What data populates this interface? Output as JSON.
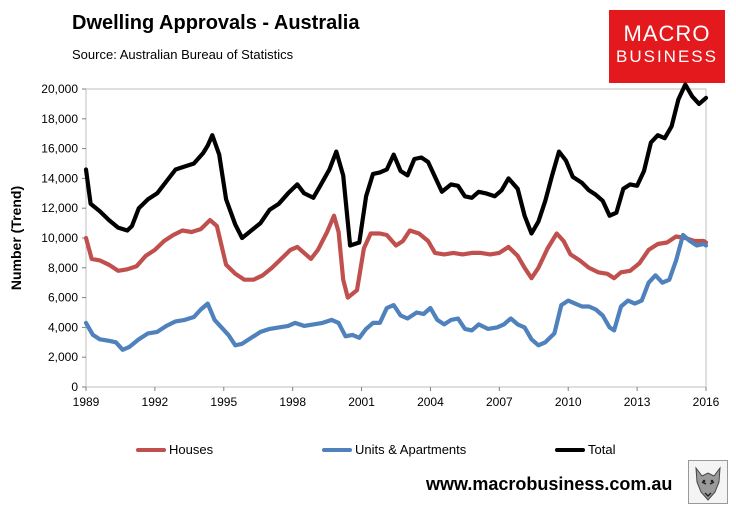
{
  "header": {
    "title": "Dwelling Approvals - Australia",
    "source": "Source:   Australian Bureau of Statistics"
  },
  "logo": {
    "line1": "MACRO",
    "line2": "BUSINESS"
  },
  "footer": {
    "url": "www.macrobusiness.com.au",
    "wolf_icon": "wolf-icon"
  },
  "chart_data": {
    "type": "line",
    "title": "Dwelling Approvals - Australia",
    "xlabel": "",
    "ylabel": "Number (Trend)",
    "xlim": [
      1989,
      2016
    ],
    "ylim": [
      0,
      20000
    ],
    "xticks": [
      "1989",
      "1992",
      "1995",
      "1998",
      "2001",
      "2004",
      "2007",
      "2010",
      "2013",
      "2016"
    ],
    "yticks": [
      "0",
      "2,000",
      "4,000",
      "6,000",
      "8,000",
      "10,000",
      "12,000",
      "14,000",
      "16,000",
      "18,000",
      "20,000"
    ],
    "legend_position": "bottom",
    "grid": false,
    "series": [
      {
        "name": "Houses",
        "color": "#c0504d",
        "points": [
          [
            1989.0,
            10000
          ],
          [
            1989.25,
            8600
          ],
          [
            1989.6,
            8500
          ],
          [
            1990.0,
            8200
          ],
          [
            1990.4,
            7800
          ],
          [
            1990.8,
            7900
          ],
          [
            1991.2,
            8100
          ],
          [
            1991.6,
            8800
          ],
          [
            1992.0,
            9200
          ],
          [
            1992.4,
            9800
          ],
          [
            1992.8,
            10200
          ],
          [
            1993.2,
            10500
          ],
          [
            1993.6,
            10400
          ],
          [
            1994.0,
            10600
          ],
          [
            1994.4,
            11200
          ],
          [
            1994.7,
            10800
          ],
          [
            1994.9,
            9500
          ],
          [
            1995.1,
            8200
          ],
          [
            1995.5,
            7600
          ],
          [
            1995.9,
            7200
          ],
          [
            1996.3,
            7200
          ],
          [
            1996.7,
            7500
          ],
          [
            1997.1,
            8000
          ],
          [
            1997.5,
            8600
          ],
          [
            1997.9,
            9200
          ],
          [
            1998.2,
            9400
          ],
          [
            1998.5,
            9000
          ],
          [
            1998.8,
            8600
          ],
          [
            1999.1,
            9200
          ],
          [
            1999.5,
            10400
          ],
          [
            1999.8,
            11500
          ],
          [
            2000.0,
            10400
          ],
          [
            2000.2,
            7200
          ],
          [
            2000.4,
            6000
          ],
          [
            2000.8,
            6500
          ],
          [
            2001.1,
            9300
          ],
          [
            2001.4,
            10300
          ],
          [
            2001.8,
            10300
          ],
          [
            2002.1,
            10200
          ],
          [
            2002.5,
            9500
          ],
          [
            2002.8,
            9800
          ],
          [
            2003.1,
            10500
          ],
          [
            2003.5,
            10300
          ],
          [
            2003.9,
            9800
          ],
          [
            2004.2,
            9000
          ],
          [
            2004.6,
            8900
          ],
          [
            2005.0,
            9000
          ],
          [
            2005.4,
            8900
          ],
          [
            2005.8,
            9000
          ],
          [
            2006.2,
            9000
          ],
          [
            2006.6,
            8900
          ],
          [
            2007.0,
            9000
          ],
          [
            2007.4,
            9400
          ],
          [
            2007.8,
            8800
          ],
          [
            2008.1,
            8000
          ],
          [
            2008.4,
            7300
          ],
          [
            2008.7,
            8000
          ],
          [
            2009.1,
            9300
          ],
          [
            2009.5,
            10300
          ],
          [
            2009.8,
            9800
          ],
          [
            2010.1,
            8900
          ],
          [
            2010.5,
            8500
          ],
          [
            2010.9,
            8000
          ],
          [
            2011.3,
            7700
          ],
          [
            2011.7,
            7600
          ],
          [
            2012.0,
            7300
          ],
          [
            2012.3,
            7700
          ],
          [
            2012.7,
            7800
          ],
          [
            2013.1,
            8300
          ],
          [
            2013.5,
            9200
          ],
          [
            2013.9,
            9600
          ],
          [
            2014.3,
            9700
          ],
          [
            2014.7,
            10100
          ],
          [
            2015.1,
            10000
          ],
          [
            2015.5,
            9800
          ],
          [
            2015.9,
            9800
          ],
          [
            2016.0,
            9700
          ]
        ]
      },
      {
        "name": "Units & Apartments",
        "color": "#4f81bd",
        "points": [
          [
            1989.0,
            4300
          ],
          [
            1989.3,
            3500
          ],
          [
            1989.6,
            3200
          ],
          [
            1990.0,
            3100
          ],
          [
            1990.3,
            3000
          ],
          [
            1990.6,
            2500
          ],
          [
            1990.9,
            2700
          ],
          [
            1991.3,
            3200
          ],
          [
            1991.7,
            3600
          ],
          [
            1992.1,
            3700
          ],
          [
            1992.5,
            4100
          ],
          [
            1992.9,
            4400
          ],
          [
            1993.3,
            4500
          ],
          [
            1993.7,
            4700
          ],
          [
            1994.0,
            5200
          ],
          [
            1994.3,
            5600
          ],
          [
            1994.6,
            4500
          ],
          [
            1994.9,
            4000
          ],
          [
            1995.2,
            3500
          ],
          [
            1995.5,
            2800
          ],
          [
            1995.8,
            2900
          ],
          [
            1996.2,
            3300
          ],
          [
            1996.6,
            3700
          ],
          [
            1997.0,
            3900
          ],
          [
            1997.4,
            4000
          ],
          [
            1997.8,
            4100
          ],
          [
            1998.1,
            4300
          ],
          [
            1998.5,
            4100
          ],
          [
            1998.9,
            4200
          ],
          [
            1999.3,
            4300
          ],
          [
            1999.7,
            4500
          ],
          [
            2000.0,
            4300
          ],
          [
            2000.3,
            3400
          ],
          [
            2000.6,
            3500
          ],
          [
            2000.9,
            3300
          ],
          [
            2001.2,
            3900
          ],
          [
            2001.5,
            4300
          ],
          [
            2001.8,
            4300
          ],
          [
            2002.1,
            5300
          ],
          [
            2002.4,
            5500
          ],
          [
            2002.7,
            4800
          ],
          [
            2003.0,
            4600
          ],
          [
            2003.4,
            5000
          ],
          [
            2003.7,
            4900
          ],
          [
            2004.0,
            5300
          ],
          [
            2004.3,
            4500
          ],
          [
            2004.6,
            4200
          ],
          [
            2004.9,
            4500
          ],
          [
            2005.2,
            4600
          ],
          [
            2005.5,
            3900
          ],
          [
            2005.8,
            3800
          ],
          [
            2006.1,
            4200
          ],
          [
            2006.5,
            3900
          ],
          [
            2006.9,
            4000
          ],
          [
            2007.2,
            4200
          ],
          [
            2007.5,
            4600
          ],
          [
            2007.8,
            4200
          ],
          [
            2008.1,
            4000
          ],
          [
            2008.4,
            3200
          ],
          [
            2008.7,
            2800
          ],
          [
            2009.0,
            3000
          ],
          [
            2009.4,
            3600
          ],
          [
            2009.7,
            5500
          ],
          [
            2010.0,
            5800
          ],
          [
            2010.3,
            5600
          ],
          [
            2010.6,
            5400
          ],
          [
            2010.9,
            5400
          ],
          [
            2011.2,
            5200
          ],
          [
            2011.5,
            4800
          ],
          [
            2011.8,
            4000
          ],
          [
            2012.0,
            3800
          ],
          [
            2012.3,
            5400
          ],
          [
            2012.6,
            5800
          ],
          [
            2012.9,
            5600
          ],
          [
            2013.2,
            5800
          ],
          [
            2013.5,
            7000
          ],
          [
            2013.8,
            7500
          ],
          [
            2014.1,
            7000
          ],
          [
            2014.4,
            7200
          ],
          [
            2014.7,
            8500
          ],
          [
            2015.0,
            10200
          ],
          [
            2015.3,
            9800
          ],
          [
            2015.6,
            9500
          ],
          [
            2015.9,
            9600
          ],
          [
            2016.0,
            9500
          ]
        ]
      },
      {
        "name": "Total",
        "color": "#000000",
        "points": [
          [
            1989.0,
            14600
          ],
          [
            1989.2,
            12300
          ],
          [
            1989.6,
            11800
          ],
          [
            1990.0,
            11200
          ],
          [
            1990.4,
            10700
          ],
          [
            1990.8,
            10500
          ],
          [
            1991.0,
            10800
          ],
          [
            1991.3,
            12000
          ],
          [
            1991.7,
            12600
          ],
          [
            1992.1,
            13000
          ],
          [
            1992.5,
            13800
          ],
          [
            1992.9,
            14600
          ],
          [
            1993.3,
            14800
          ],
          [
            1993.7,
            15000
          ],
          [
            1994.1,
            15700
          ],
          [
            1994.3,
            16200
          ],
          [
            1994.5,
            16900
          ],
          [
            1994.8,
            15600
          ],
          [
            1995.1,
            12600
          ],
          [
            1995.5,
            10900
          ],
          [
            1995.8,
            10000
          ],
          [
            1996.2,
            10500
          ],
          [
            1996.6,
            11000
          ],
          [
            1997.0,
            11900
          ],
          [
            1997.4,
            12300
          ],
          [
            1997.8,
            13000
          ],
          [
            1998.2,
            13600
          ],
          [
            1998.5,
            13000
          ],
          [
            1998.9,
            12700
          ],
          [
            1999.2,
            13500
          ],
          [
            1999.6,
            14600
          ],
          [
            1999.9,
            15800
          ],
          [
            2000.2,
            14200
          ],
          [
            2000.5,
            9500
          ],
          [
            2000.9,
            9700
          ],
          [
            2001.2,
            12800
          ],
          [
            2001.5,
            14300
          ],
          [
            2001.8,
            14400
          ],
          [
            2002.1,
            14600
          ],
          [
            2002.4,
            15600
          ],
          [
            2002.7,
            14500
          ],
          [
            2003.0,
            14200
          ],
          [
            2003.3,
            15300
          ],
          [
            2003.6,
            15400
          ],
          [
            2003.9,
            15100
          ],
          [
            2004.2,
            14100
          ],
          [
            2004.5,
            13100
          ],
          [
            2004.9,
            13600
          ],
          [
            2005.2,
            13500
          ],
          [
            2005.5,
            12800
          ],
          [
            2005.8,
            12700
          ],
          [
            2006.1,
            13100
          ],
          [
            2006.4,
            13000
          ],
          [
            2006.8,
            12800
          ],
          [
            2007.1,
            13200
          ],
          [
            2007.4,
            14000
          ],
          [
            2007.8,
            13300
          ],
          [
            2008.1,
            11500
          ],
          [
            2008.4,
            10300
          ],
          [
            2008.7,
            11100
          ],
          [
            2009.0,
            12500
          ],
          [
            2009.3,
            14200
          ],
          [
            2009.6,
            15800
          ],
          [
            2009.9,
            15200
          ],
          [
            2010.2,
            14100
          ],
          [
            2010.6,
            13700
          ],
          [
            2010.9,
            13200
          ],
          [
            2011.2,
            12900
          ],
          [
            2011.5,
            12500
          ],
          [
            2011.8,
            11500
          ],
          [
            2012.1,
            11700
          ],
          [
            2012.4,
            13300
          ],
          [
            2012.7,
            13600
          ],
          [
            2013.0,
            13500
          ],
          [
            2013.3,
            14500
          ],
          [
            2013.6,
            16400
          ],
          [
            2013.9,
            16900
          ],
          [
            2014.2,
            16700
          ],
          [
            2014.5,
            17500
          ],
          [
            2014.8,
            19300
          ],
          [
            2015.1,
            20300
          ],
          [
            2015.4,
            19500
          ],
          [
            2015.7,
            19000
          ],
          [
            2016.0,
            19400
          ]
        ]
      }
    ]
  }
}
